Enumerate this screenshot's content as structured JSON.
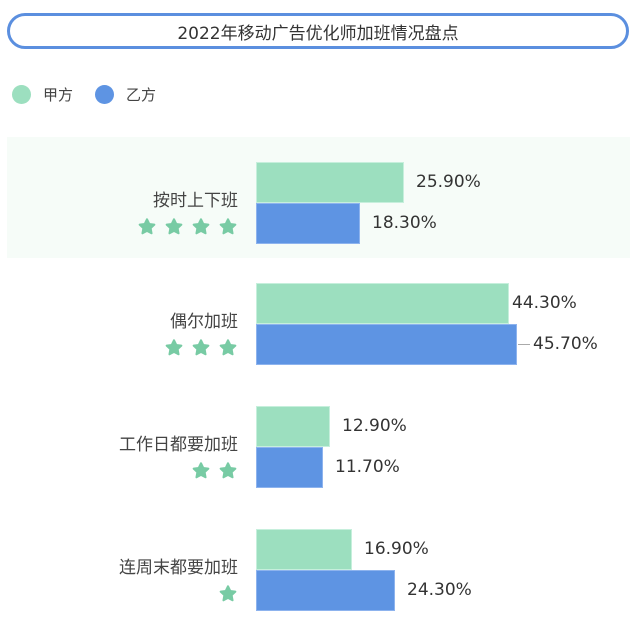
{
  "title": "2022年移动广告优化师加班情况盘点",
  "legend": [
    {
      "label": "甲方",
      "color": "#9cdfbf"
    },
    {
      "label": "乙方",
      "color": "#5e94e3"
    }
  ],
  "rows": [
    {
      "label": "按时上下班",
      "stars": 4,
      "a": "25.90%",
      "b": "18.30%"
    },
    {
      "label": "偶尔加班",
      "stars": 3,
      "a": "44.30%",
      "b": "45.70%"
    },
    {
      "label": "工作日都要加班",
      "stars": 2,
      "a": "12.90%",
      "b": "11.70%"
    },
    {
      "label": "连周末都要加班",
      "stars": 1,
      "a": "16.90%",
      "b": "24.30%"
    }
  ],
  "chart_data": {
    "type": "bar",
    "orientation": "horizontal",
    "title": "2022年移动广告优化师加班情况盘点",
    "categories": [
      "按时上下班",
      "偶尔加班",
      "工作日都要加班",
      "连周末都要加班"
    ],
    "series": [
      {
        "name": "甲方",
        "values": [
          25.9,
          44.3,
          12.9,
          16.9
        ],
        "color": "#9cdfbf"
      },
      {
        "name": "乙方",
        "values": [
          18.3,
          45.7,
          11.7,
          24.3
        ],
        "color": "#5e94e3"
      }
    ],
    "category_ratings_stars": [
      4,
      3,
      2,
      1
    ],
    "value_format": "percent, 2 decimals",
    "legend_position": "top-left",
    "grid": false,
    "xlabel": "",
    "ylabel": ""
  }
}
